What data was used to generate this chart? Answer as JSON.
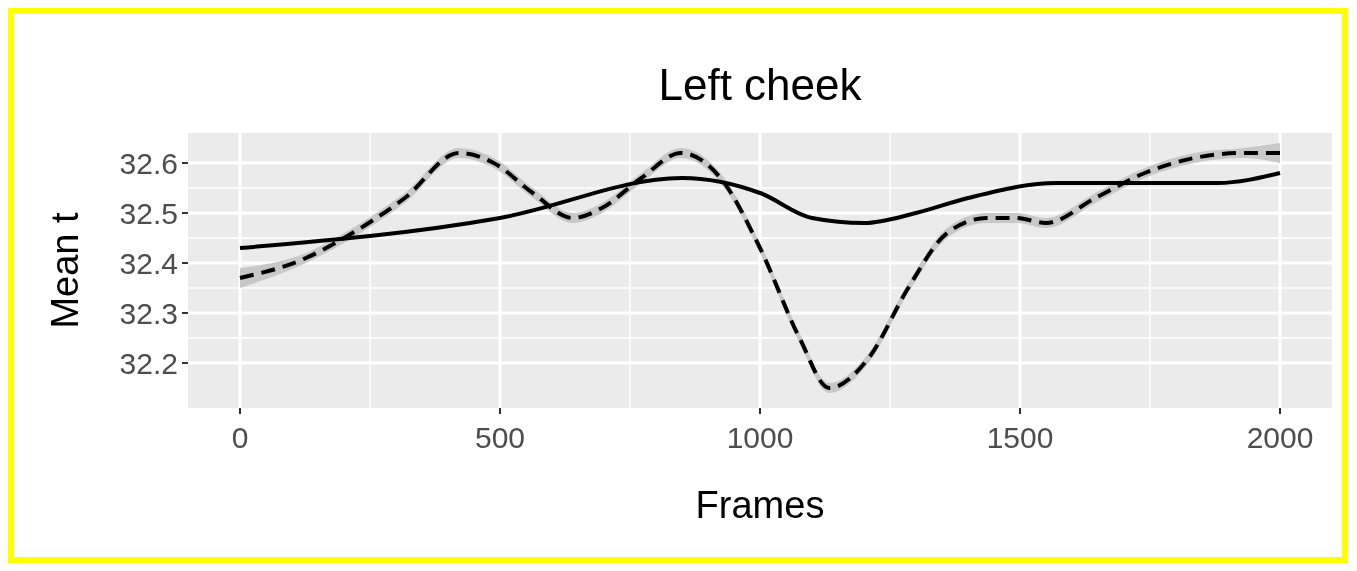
{
  "chart_data": {
    "type": "line",
    "title": "Left cheek",
    "xlabel": "Frames",
    "ylabel": "Mean t",
    "xlim": [
      -100,
      2100
    ],
    "xticks": [
      0,
      500,
      1000,
      1500,
      2000
    ],
    "ylim": [
      32.11,
      32.66
    ],
    "yticks": [
      32.2,
      32.3,
      32.4,
      32.5,
      32.6
    ],
    "grid": true,
    "series": [
      {
        "color": "#000000",
        "line_style": "dashed",
        "x": [
          0,
          127,
          200,
          317,
          421,
          488,
          563,
          640,
          696,
          772,
          848,
          924,
          1000,
          1076,
          1133,
          1209,
          1285,
          1360,
          1436,
          1493,
          1550,
          1645,
          1740,
          1835,
          1929,
          2000
        ],
        "values": [
          32.37,
          32.41,
          32.45,
          32.53,
          32.62,
          32.6,
          32.54,
          32.49,
          32.51,
          32.57,
          32.62,
          32.57,
          32.43,
          32.25,
          32.15,
          32.21,
          32.35,
          32.46,
          32.49,
          32.49,
          32.48,
          32.53,
          32.58,
          32.61,
          32.62,
          32.62
        ],
        "lower": [
          32.35,
          32.4,
          32.44,
          32.52,
          32.61,
          32.59,
          32.53,
          32.48,
          32.5,
          32.56,
          32.61,
          32.56,
          32.42,
          32.24,
          32.14,
          32.2,
          32.34,
          32.45,
          32.48,
          32.48,
          32.47,
          32.52,
          32.57,
          32.6,
          32.61,
          32.6
        ],
        "upper": [
          32.39,
          32.42,
          32.46,
          32.54,
          32.63,
          32.61,
          32.55,
          32.5,
          32.52,
          32.58,
          32.63,
          32.58,
          32.44,
          32.26,
          32.16,
          32.22,
          32.36,
          32.47,
          32.5,
          32.5,
          32.49,
          32.54,
          32.59,
          32.62,
          32.63,
          32.64
        ]
      },
      {
        "color": "#000000",
        "line_style": "solid",
        "x": [
          0,
          500,
          850,
          1000,
          1100,
          1200,
          1300,
          1400,
          1570,
          1880,
          2000
        ],
        "values": [
          32.43,
          32.49,
          32.57,
          32.54,
          32.49,
          32.48,
          32.5,
          32.53,
          32.56,
          32.56,
          32.58
        ]
      }
    ]
  }
}
